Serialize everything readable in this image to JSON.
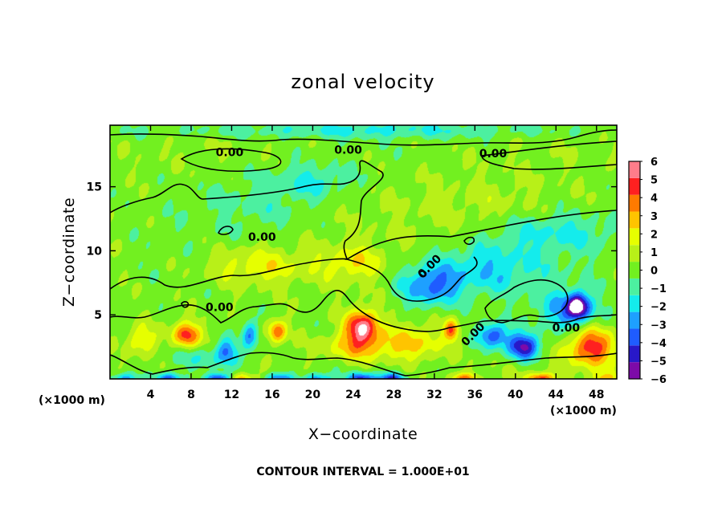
{
  "chart_data": {
    "type": "heatmap",
    "title": "zonal velocity",
    "xlabel": "X−coordinate",
    "ylabel": "Z−coordinate",
    "x_unit_left": "(×1000 m)",
    "x_unit_right": "(×1000 m)",
    "xlim": [
      0,
      50
    ],
    "ylim": [
      0,
      19.8
    ],
    "x_ticks": [
      4,
      8,
      12,
      16,
      20,
      24,
      28,
      32,
      36,
      40,
      44,
      48
    ],
    "x_tick_labels": [
      "4",
      "8",
      "12",
      "16",
      "20",
      "24",
      "28",
      "32",
      "36",
      "40",
      "44",
      "48"
    ],
    "y_ticks": [
      5,
      10,
      15
    ],
    "y_tick_labels": [
      "5",
      "10",
      "15"
    ],
    "colorbar": {
      "levels": [
        -6,
        -5,
        -4,
        -3,
        -2,
        -1,
        0,
        1,
        2,
        3,
        4,
        5,
        6
      ],
      "labels": [
        "−6",
        "−5",
        "−4",
        "−3",
        "−2",
        "−1",
        "0",
        "1",
        "2",
        "3",
        "4",
        "5",
        "6"
      ],
      "colors": [
        "#7d0aa8",
        "#2818c8",
        "#1f5cff",
        "#1ea0ff",
        "#14ecec",
        "#4cf0a0",
        "#72f020",
        "#b8f018",
        "#e6ff00",
        "#ffc400",
        "#ff7a00",
        "#ff2020",
        "#ff7d8a"
      ]
    },
    "contour_interval_note": "CONTOUR INTERVAL = 1.000E+01",
    "contour_labels": [
      {
        "text": "0.00",
        "x": 11.8,
        "z": 17.7
      },
      {
        "text": "0.00",
        "x": 23.5,
        "z": 17.9
      },
      {
        "text": "0.00",
        "x": 37.8,
        "z": 17.6
      },
      {
        "text": "0.00",
        "x": 15.0,
        "z": 11.1
      },
      {
        "text": "0.00",
        "x": 10.8,
        "z": 5.6
      },
      {
        "text": "0.00",
        "x": 31.5,
        "z": 8.8
      },
      {
        "text": "0.00",
        "x": 35.8,
        "z": 3.5
      },
      {
        "text": "0.00",
        "x": 45.0,
        "z": 4.0
      }
    ],
    "anomalies": [
      {
        "x": 24.9,
        "z": 4.1,
        "value": 6.0,
        "sx": 1.6,
        "sz": 1.3
      },
      {
        "x": 24.5,
        "z": 2.5,
        "value": 3.0,
        "sx": 3.5,
        "sz": 1.2
      },
      {
        "x": 7.5,
        "z": 3.4,
        "value": 4.8,
        "sx": 1.3,
        "sz": 1.0
      },
      {
        "x": 16.5,
        "z": 3.7,
        "value": 4.2,
        "sx": 0.9,
        "sz": 0.9
      },
      {
        "x": 33.7,
        "z": 3.8,
        "value": 4.2,
        "sx": 0.7,
        "sz": 0.8
      },
      {
        "x": 47.5,
        "z": 2.5,
        "value": 4.8,
        "sx": 2.3,
        "sz": 1.5
      },
      {
        "x": 3.0,
        "z": 3.0,
        "value": 2.2,
        "sx": 1.5,
        "sz": 1.2
      },
      {
        "x": 30.0,
        "z": 2.8,
        "value": 2.6,
        "sx": 3.0,
        "sz": 1.5
      },
      {
        "x": 14.5,
        "z": 8.8,
        "value": 2.2,
        "sx": 5.0,
        "sz": 1.5
      },
      {
        "x": 24.0,
        "z": 9.0,
        "value": 2.0,
        "sx": 3.0,
        "sz": 1.3
      },
      {
        "x": 40.8,
        "z": 2.5,
        "value": -6.0,
        "sx": 1.6,
        "sz": 1.0
      },
      {
        "x": 46.2,
        "z": 5.7,
        "value": -6.0,
        "sx": 1.1,
        "sz": 1.0
      },
      {
        "x": 45.0,
        "z": 5.2,
        "value": -3.0,
        "sx": 3.0,
        "sz": 1.6
      },
      {
        "x": 37.8,
        "z": 3.4,
        "value": -4.5,
        "sx": 1.6,
        "sz": 1.0
      },
      {
        "x": 13.8,
        "z": 3.4,
        "value": -3.8,
        "sx": 0.8,
        "sz": 1.2
      },
      {
        "x": 11.5,
        "z": 2.2,
        "value": -3.2,
        "sx": 1.0,
        "sz": 1.0
      },
      {
        "x": 31.5,
        "z": 7.2,
        "value": -3.6,
        "sx": 2.8,
        "sz": 1.5
      },
      {
        "x": 37.0,
        "z": 8.5,
        "value": -2.4,
        "sx": 6.0,
        "sz": 2.0
      },
      {
        "x": 44.0,
        "z": 11.5,
        "value": -1.8,
        "sx": 6.0,
        "sz": 1.5
      },
      {
        "x": 20.0,
        "z": 15.5,
        "value": -1.7,
        "sx": 4.0,
        "sz": 1.2
      },
      {
        "x": 15.0,
        "z": 13.8,
        "value": -1.0,
        "sx": 6.0,
        "sz": 2.0
      },
      {
        "x": 25.0,
        "z": 19.4,
        "value": -1.6,
        "sx": 25.0,
        "sz": 0.6
      },
      {
        "x": 9.0,
        "z": 1.6,
        "value": -1.8,
        "sx": 4.0,
        "sz": 1.0
      },
      {
        "x": 38.0,
        "z": 13.5,
        "value": 0.8,
        "sx": 8.0,
        "sz": 2.5
      }
    ],
    "bottom_rows": [
      {
        "x": 1.5,
        "value": -3.5
      },
      {
        "x": 5.8,
        "value": -4.5
      },
      {
        "x": 10.7,
        "value": -5.5
      },
      {
        "x": 13.0,
        "value": 3.0
      },
      {
        "x": 16.7,
        "value": -4.0
      },
      {
        "x": 20.5,
        "value": -3.5
      },
      {
        "x": 24.8,
        "value": -5.0
      },
      {
        "x": 27.8,
        "value": -4.5
      },
      {
        "x": 35.0,
        "value": 4.0
      },
      {
        "x": 42.5,
        "value": 4.5
      },
      {
        "x": 48.8,
        "value": 2.5
      }
    ]
  },
  "colors": {
    "contour": "#000000",
    "frame": "#000000",
    "background": "#ffffff"
  }
}
